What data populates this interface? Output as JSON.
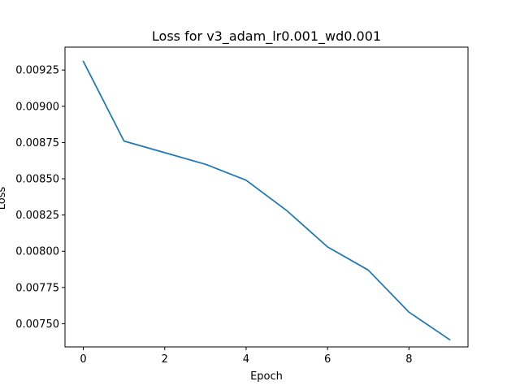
{
  "chart_data": {
    "type": "line",
    "title": "Loss for v3_adam_lr0.001_wd0.001",
    "xlabel": "Epoch",
    "ylabel": "Loss",
    "xlim": [
      -0.45,
      9.45
    ],
    "ylim": [
      0.00734,
      0.009408
    ],
    "x_ticks": [
      0,
      2,
      4,
      6,
      8
    ],
    "x_tick_labels": [
      "0",
      "2",
      "4",
      "6",
      "8"
    ],
    "y_ticks": [
      0.0075,
      0.00775,
      0.008,
      0.00825,
      0.0085,
      0.00875,
      0.009,
      0.00925
    ],
    "y_tick_labels": [
      "0.00750",
      "0.00775",
      "0.00800",
      "0.00825",
      "0.00850",
      "0.00875",
      "0.00900",
      "0.00925"
    ],
    "grid": false,
    "series": [
      {
        "color": "#1f77b4",
        "x": [
          0,
          1,
          2,
          3,
          4,
          5,
          6,
          7,
          8,
          9
        ],
        "values": [
          0.00931,
          0.00876,
          0.00868,
          0.0086,
          0.00849,
          0.00828,
          0.00803,
          0.00787,
          0.00758,
          0.00739
        ]
      }
    ]
  }
}
